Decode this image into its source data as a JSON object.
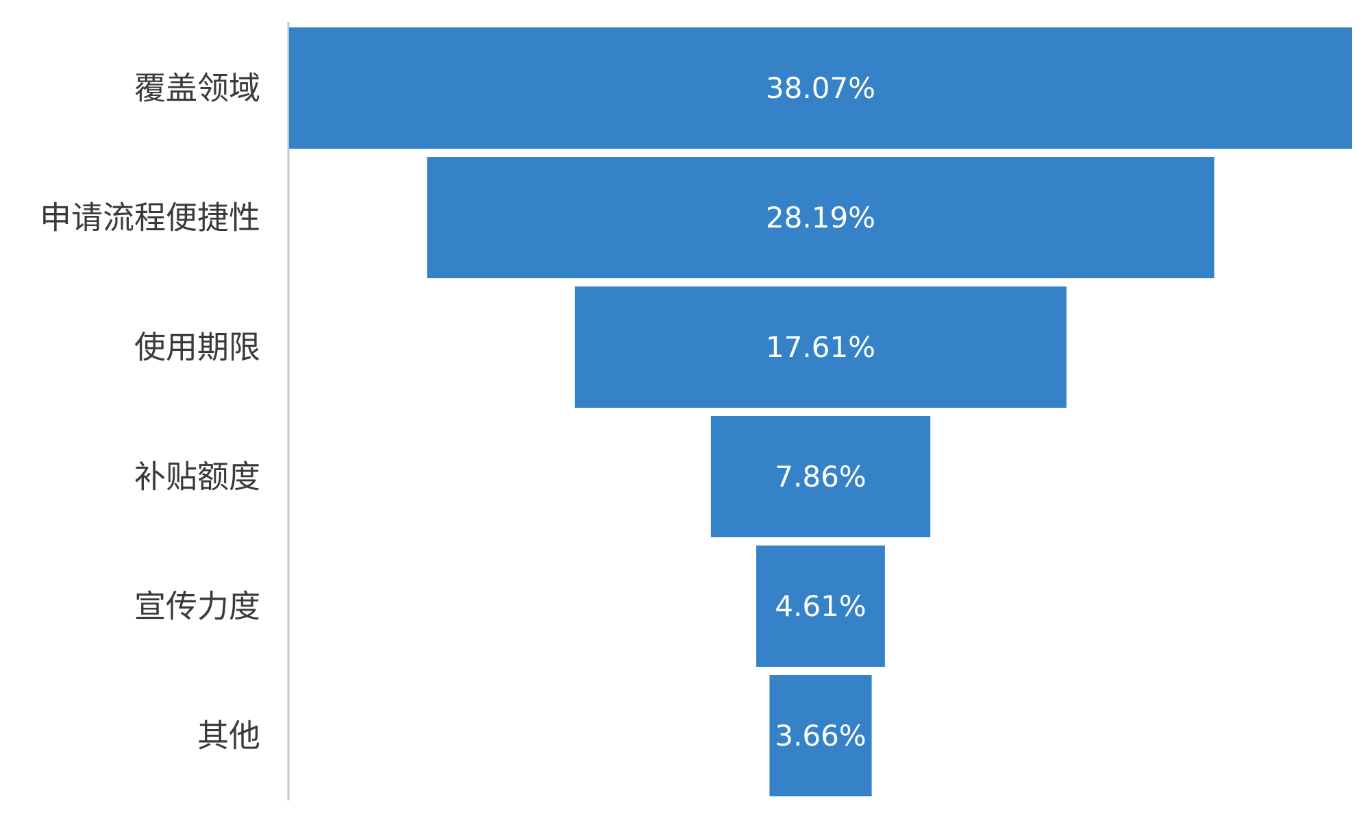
{
  "chart_data": {
    "type": "bar",
    "subtype": "funnel",
    "categories": [
      "覆盖领域",
      "申请流程便捷性",
      "使用期限",
      "补贴额度",
      "宣传力度",
      "其他"
    ],
    "values": [
      38.07,
      28.19,
      17.61,
      7.86,
      4.61,
      3.66
    ],
    "data_labels": [
      "38.07%",
      "28.19%",
      "17.61%",
      "7.86%",
      "4.61%",
      "3.66%"
    ],
    "unit": "%",
    "bar_color": "#3682c8",
    "label_color": "#ffffff",
    "axis_color": "#c8c8c8",
    "grid": false,
    "legend": "none"
  }
}
